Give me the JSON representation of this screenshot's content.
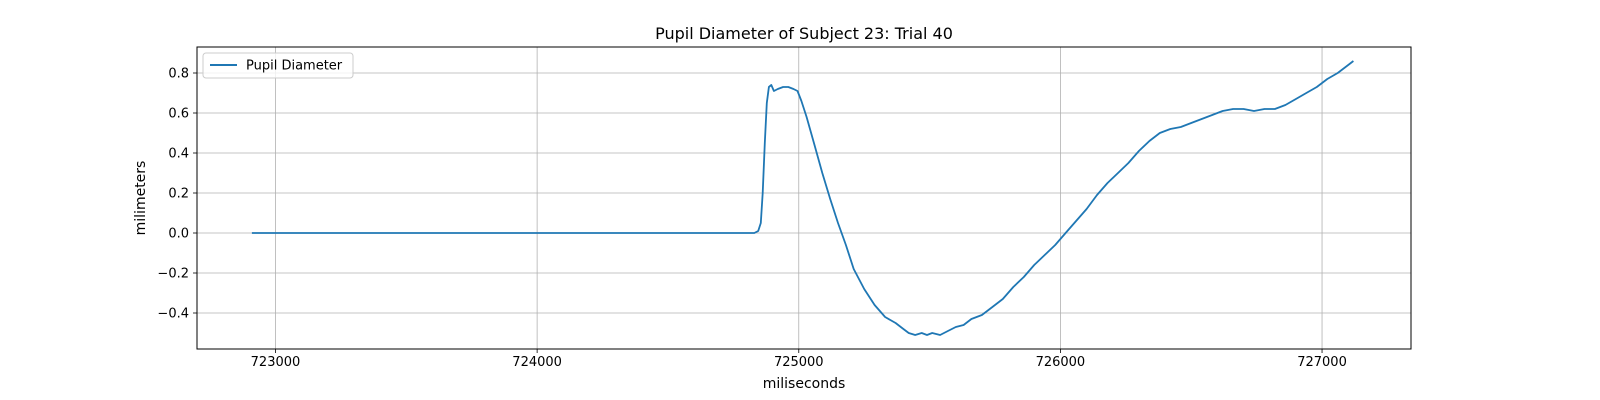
{
  "chart_data": {
    "type": "line",
    "title": "Pupil Diameter of Subject 23: Trial 40",
    "xlabel": "miliseconds",
    "ylabel": "milimeters",
    "xlim": [
      722700,
      727340
    ],
    "ylim": [
      -0.58,
      0.93
    ],
    "xticks": [
      723000,
      724000,
      725000,
      726000,
      727000
    ],
    "yticks": [
      -0.4,
      -0.2,
      0.0,
      0.2,
      0.4,
      0.6,
      0.8
    ],
    "xtick_labels": [
      "723000",
      "724000",
      "725000",
      "726000",
      "727000"
    ],
    "ytick_labels": [
      "−0.4",
      "−0.2",
      "0.0",
      "0.2",
      "0.4",
      "0.6",
      "0.8"
    ],
    "grid": true,
    "legend": {
      "placement": "top-left",
      "entries": [
        "Pupil Diameter"
      ]
    },
    "series": [
      {
        "name": "Pupil Diameter",
        "color": "#1f77b4",
        "x": [
          722910,
          723200,
          723500,
          723800,
          724100,
          724400,
          724700,
          724830,
          724845,
          724855,
          724862,
          724870,
          724878,
          724886,
          724895,
          724905,
          724920,
          724940,
          724960,
          724980,
          724995,
          725010,
          725030,
          725060,
          725090,
          725120,
          725150,
          725180,
          725210,
          725250,
          725290,
          725330,
          725370,
          725400,
          725420,
          725445,
          725470,
          725490,
          725510,
          725540,
          725570,
          725600,
          725630,
          725660,
          725700,
          725740,
          725780,
          725820,
          725860,
          725900,
          725940,
          725980,
          726020,
          726060,
          726100,
          726140,
          726180,
          726220,
          726260,
          726300,
          726340,
          726380,
          726420,
          726460,
          726500,
          726540,
          726580,
          726620,
          726660,
          726700,
          726740,
          726780,
          726820,
          726860,
          726900,
          726940,
          726980,
          727020,
          727060,
          727100,
          727120
        ],
        "values": [
          0.0,
          0.0,
          0.0,
          0.0,
          0.0,
          0.0,
          0.0,
          0.0,
          0.01,
          0.05,
          0.2,
          0.45,
          0.65,
          0.73,
          0.74,
          0.71,
          0.72,
          0.73,
          0.73,
          0.72,
          0.71,
          0.66,
          0.58,
          0.44,
          0.3,
          0.17,
          0.05,
          -0.06,
          -0.18,
          -0.28,
          -0.36,
          -0.42,
          -0.45,
          -0.48,
          -0.5,
          -0.51,
          -0.5,
          -0.51,
          -0.5,
          -0.51,
          -0.49,
          -0.47,
          -0.46,
          -0.43,
          -0.41,
          -0.37,
          -0.33,
          -0.27,
          -0.22,
          -0.16,
          -0.11,
          -0.06,
          0.0,
          0.06,
          0.12,
          0.19,
          0.25,
          0.3,
          0.35,
          0.41,
          0.46,
          0.5,
          0.52,
          0.53,
          0.55,
          0.57,
          0.59,
          0.61,
          0.62,
          0.62,
          0.61,
          0.62,
          0.62,
          0.64,
          0.67,
          0.7,
          0.73,
          0.77,
          0.8,
          0.84,
          0.86
        ]
      }
    ]
  }
}
